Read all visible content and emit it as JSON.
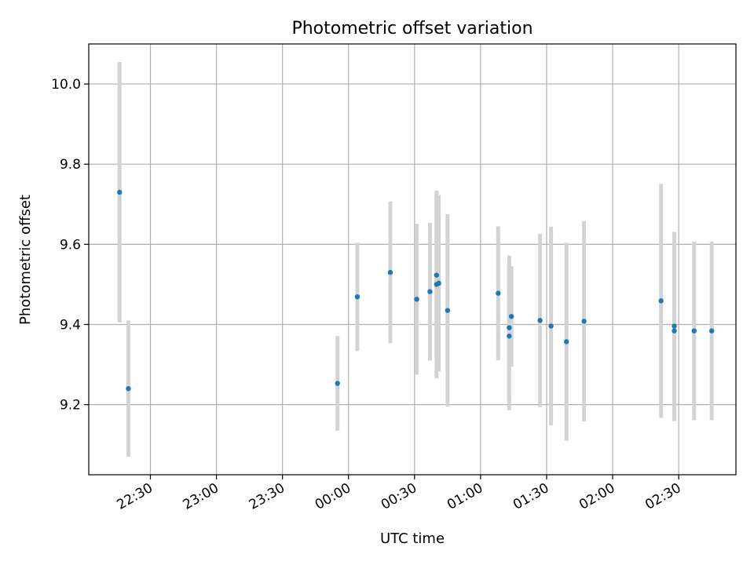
{
  "chart_data": {
    "type": "scatter",
    "title": "Photometric offset variation",
    "xlabel": "UTC time",
    "ylabel": "Photometric offset",
    "grid": true,
    "x_axis": {
      "kind": "time",
      "range": [
        "22:02",
        "02:56"
      ],
      "ticks": [
        "22:30",
        "23:00",
        "23:30",
        "00:00",
        "00:30",
        "01:00",
        "01:30",
        "02:00",
        "02:30"
      ]
    },
    "y_axis": {
      "range": [
        9.025,
        10.1
      ],
      "ticks": [
        9.2,
        9.4,
        9.6,
        9.8,
        10.0
      ],
      "tick_labels": [
        "9.2",
        "9.4",
        "9.6",
        "9.8",
        "10.0"
      ]
    },
    "series": [
      {
        "marker_color": "#1f77b4",
        "errorbar_color": "#d3d3d3",
        "points": [
          {
            "t": "22:16",
            "y": 9.73,
            "err": 0.325
          },
          {
            "t": "22:20",
            "y": 9.24,
            "err": 0.17
          },
          {
            "t": "23:55",
            "y": 9.253,
            "err": 0.118
          },
          {
            "t": "00:04",
            "y": 9.469,
            "err": 0.135
          },
          {
            "t": "00:19",
            "y": 9.53,
            "err": 0.177
          },
          {
            "t": "00:31",
            "y": 9.463,
            "err": 0.188
          },
          {
            "t": "00:37",
            "y": 9.482,
            "err": 0.172
          },
          {
            "t": "00:40",
            "y": 9.5,
            "err": 0.234
          },
          {
            "t": "00:40",
            "y": 9.523,
            "err": 0.2
          },
          {
            "t": "00:41",
            "y": 9.503,
            "err": 0.22
          },
          {
            "t": "00:45",
            "y": 9.435,
            "err": 0.24
          },
          {
            "t": "01:08",
            "y": 9.478,
            "err": 0.167
          },
          {
            "t": "01:13",
            "y": 9.371,
            "err": 0.185
          },
          {
            "t": "01:13",
            "y": 9.392,
            "err": 0.18
          },
          {
            "t": "01:14",
            "y": 9.42,
            "err": 0.125
          },
          {
            "t": "01:27",
            "y": 9.41,
            "err": 0.216
          },
          {
            "t": "01:32",
            "y": 9.396,
            "err": 0.248
          },
          {
            "t": "01:39",
            "y": 9.357,
            "err": 0.247
          },
          {
            "t": "01:47",
            "y": 9.408,
            "err": 0.25
          },
          {
            "t": "02:22",
            "y": 9.459,
            "err": 0.292
          },
          {
            "t": "02:28",
            "y": 9.396,
            "err": 0.235
          },
          {
            "t": "02:28",
            "y": 9.384,
            "err": 0.225
          },
          {
            "t": "02:37",
            "y": 9.384,
            "err": 0.223
          },
          {
            "t": "02:45",
            "y": 9.384,
            "err": 0.223
          }
        ]
      }
    ]
  }
}
